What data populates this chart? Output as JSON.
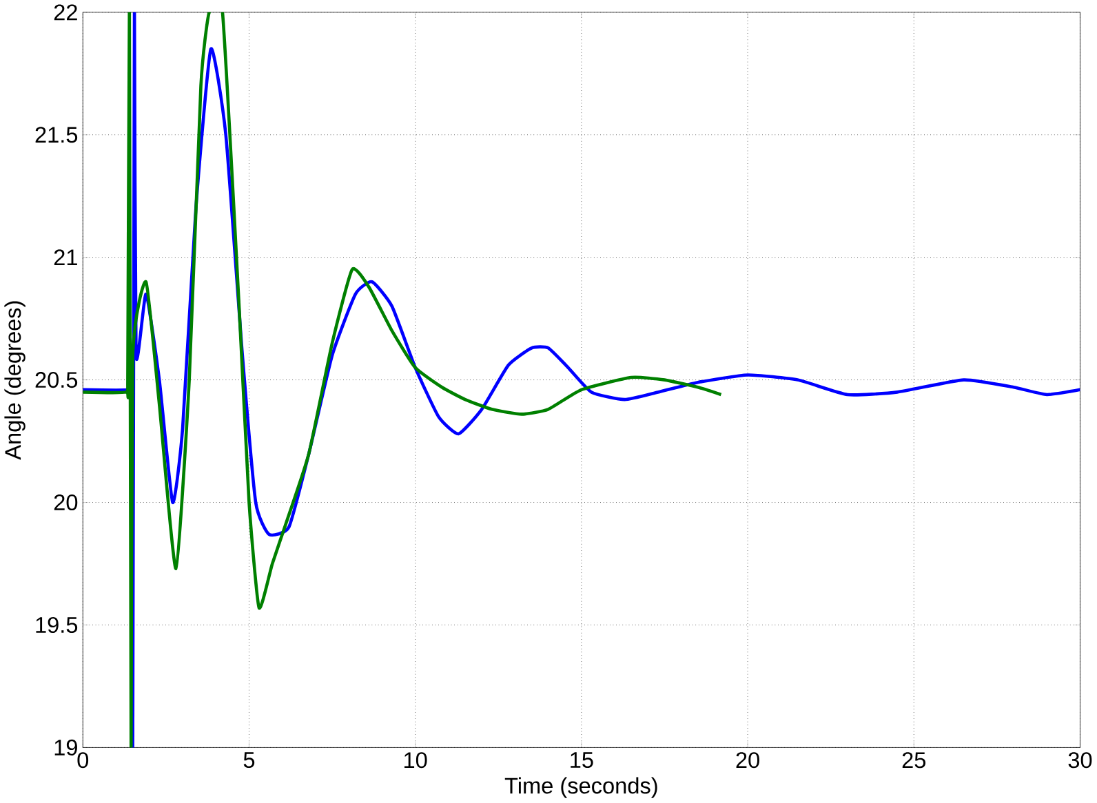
{
  "chart_data": {
    "type": "line",
    "xlabel": "Time (seconds)",
    "ylabel": "Angle (degrees)",
    "xlim": [
      0,
      30
    ],
    "ylim": [
      19,
      22
    ],
    "xticks": [
      0,
      5,
      10,
      15,
      20,
      25,
      30
    ],
    "yticks": [
      19,
      19.5,
      20,
      20.5,
      21,
      21.5,
      22
    ],
    "grid": true,
    "line_style": "solid",
    "marker": "none",
    "series": [
      {
        "color": "#0000ff",
        "x": [
          0,
          1.4,
          1.45,
          1.5,
          1.55,
          1.6,
          1.9,
          2.3,
          2.7,
          3.0,
          3.4,
          3.85,
          4.3,
          4.8,
          5.2,
          5.6,
          6.2,
          6.8,
          7.5,
          8.2,
          8.7,
          9.3,
          10,
          10.7,
          11.3,
          12,
          12.8,
          13.5,
          14,
          14.6,
          15.3,
          16.3,
          17.3,
          18.5,
          20,
          21.5,
          23,
          24.5,
          26.5,
          28,
          29,
          30
        ],
        "values": [
          20.46,
          20.46,
          20.5,
          19,
          22,
          20.6,
          20.85,
          20.5,
          20.0,
          20.3,
          21.2,
          21.85,
          21.5,
          20.6,
          20.0,
          19.87,
          19.9,
          20.2,
          20.6,
          20.85,
          20.9,
          20.8,
          20.55,
          20.35,
          20.28,
          20.38,
          20.56,
          20.63,
          20.63,
          20.55,
          20.45,
          20.42,
          20.45,
          20.49,
          20.52,
          20.5,
          20.44,
          20.45,
          20.5,
          20.47,
          20.44,
          20.46
        ]
      },
      {
        "color": "#008000",
        "x": [
          0,
          1.3,
          1.35,
          1.4,
          1.45,
          1.5,
          1.9,
          2.3,
          2.8,
          3.2,
          3.55,
          3.8,
          4.2,
          4.7,
          5.0,
          5.3,
          5.7,
          6.2,
          6.8,
          7.5,
          8.1,
          8.6,
          9.3,
          10,
          10.8,
          11.5,
          12.3,
          13.2,
          14,
          15,
          16.5,
          17.5,
          18.5,
          19.2
        ],
        "values": [
          20.45,
          20.45,
          20.5,
          22,
          19,
          20.6,
          20.9,
          20.4,
          19.73,
          20.5,
          21.7,
          22,
          22,
          20.8,
          20.0,
          19.57,
          19.75,
          19.95,
          20.2,
          20.65,
          20.95,
          20.88,
          20.7,
          20.55,
          20.47,
          20.42,
          20.38,
          20.36,
          20.38,
          20.46,
          20.51,
          20.5,
          20.47,
          20.44
        ]
      }
    ]
  }
}
